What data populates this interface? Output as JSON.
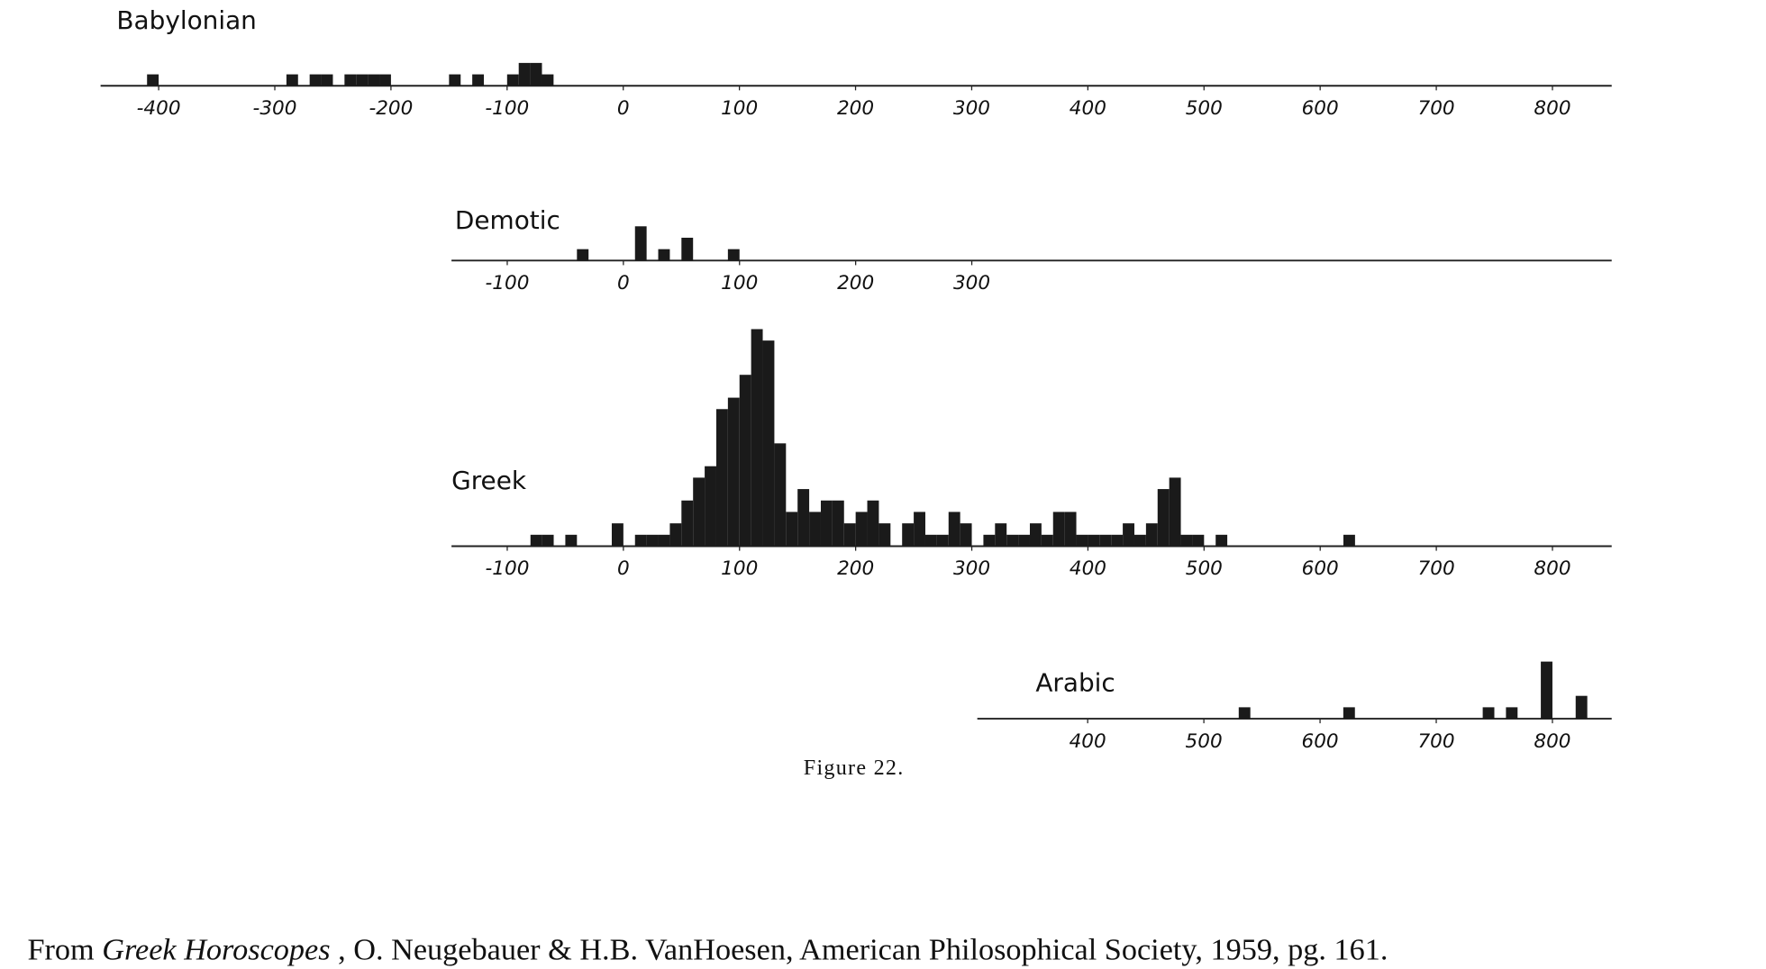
{
  "chart_data": [
    {
      "type": "bar",
      "title": "Babylonian",
      "color": "#1a1a1a",
      "x": [
        -405,
        -285,
        -265,
        -255,
        -235,
        -225,
        -215,
        -205,
        -145,
        -125,
        -95,
        -85,
        -75,
        -65
      ],
      "values": [
        1,
        1,
        1,
        1,
        1,
        1,
        1,
        1,
        1,
        1,
        1,
        2,
        2,
        1
      ],
      "xlim": [
        -450,
        851
      ],
      "xticks": [
        -400,
        -300,
        -200,
        -100,
        0,
        100,
        200,
        300,
        400,
        500,
        600,
        700,
        800
      ]
    },
    {
      "type": "bar",
      "title": "Demotic",
      "color": "#1a1a1a",
      "x": [
        -35,
        15,
        35,
        55,
        95
      ],
      "values": [
        1,
        3,
        1,
        2,
        1
      ],
      "xlim": [
        -148,
        851
      ],
      "xticks": [
        -100,
        0,
        100,
        200,
        300
      ]
    },
    {
      "type": "bar",
      "title": "Greek",
      "color": "#1a1a1a",
      "x": [
        -75,
        -65,
        -45,
        -5,
        15,
        25,
        35,
        45,
        55,
        65,
        75,
        85,
        95,
        105,
        115,
        125,
        135,
        145,
        155,
        165,
        175,
        185,
        195,
        205,
        215,
        225,
        245,
        255,
        265,
        275,
        285,
        295,
        315,
        325,
        335,
        345,
        355,
        365,
        375,
        385,
        395,
        405,
        415,
        425,
        435,
        445,
        455,
        465,
        475,
        485,
        495,
        515,
        625
      ],
      "values": [
        1,
        1,
        1,
        2,
        1,
        1,
        1,
        2,
        4,
        6,
        7,
        12,
        13,
        15,
        19,
        18,
        9,
        3,
        5,
        3,
        4,
        4,
        2,
        3,
        4,
        2,
        2,
        3,
        1,
        1,
        3,
        2,
        1,
        2,
        1,
        1,
        2,
        1,
        3,
        3,
        1,
        1,
        1,
        1,
        2,
        1,
        2,
        5,
        6,
        1,
        1,
        1,
        1
      ],
      "xlim": [
        -148,
        851
      ],
      "xticks": [
        -100,
        0,
        100,
        200,
        300,
        400,
        500,
        600,
        700,
        800
      ]
    },
    {
      "type": "bar",
      "title": "Arabic",
      "color": "#1a1a1a",
      "x": [
        535,
        625,
        745,
        765,
        795,
        825
      ],
      "values": [
        1,
        1,
        1,
        1,
        5,
        2
      ],
      "xlim": [
        305,
        851
      ],
      "xticks": [
        400,
        500,
        600,
        700,
        800
      ]
    }
  ],
  "caption": "Figure 22.",
  "source": {
    "prefix": "From",
    "book": "Greek Horoscopes",
    "rest": ", O. Neugebauer & H.B. VanHoesen, American Philosophical Society, 1959, pg. 161."
  }
}
